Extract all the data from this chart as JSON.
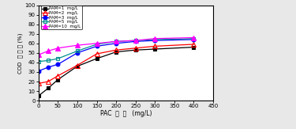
{
  "x": [
    0,
    25,
    50,
    100,
    150,
    200,
    250,
    300,
    400
  ],
  "series": [
    {
      "label": "PAM=1  mg/L",
      "color": "black",
      "marker": "s",
      "fillstyle": "full",
      "markersize": 3.5,
      "y": [
        5,
        13,
        22,
        36,
        44,
        51,
        53,
        54,
        56
      ]
    },
    {
      "label": "PAM=2  mg/L",
      "color": "red",
      "marker": "^",
      "fillstyle": "none",
      "markersize": 4,
      "y": [
        18,
        20,
        26,
        37,
        49,
        53,
        55,
        57,
        59
      ]
    },
    {
      "label": "PAM=3  mg/L",
      "color": "blue",
      "marker": "o",
      "fillstyle": "full",
      "markersize": 3.5,
      "y": [
        31,
        35,
        38,
        50,
        57,
        60,
        62,
        63,
        64
      ]
    },
    {
      "label": "PAM=5  mg/L",
      "color": "#009090",
      "marker": "s",
      "fillstyle": "none",
      "markersize": 3.5,
      "y": [
        41,
        42,
        44,
        52,
        59,
        62,
        63,
        64,
        65
      ]
    },
    {
      "label": "PAM=10  mg/L",
      "color": "magenta",
      "marker": "^",
      "fillstyle": "full",
      "markersize": 4,
      "y": [
        48,
        52,
        55,
        58,
        60,
        62,
        63,
        65,
        66
      ]
    }
  ],
  "xlabel": "PAC  用  量   (mg/L)",
  "ylabel": "COD  去 除 率 (%)",
  "xlim": [
    0,
    450
  ],
  "ylim": [
    0,
    100
  ],
  "xticks": [
    0,
    50,
    100,
    150,
    200,
    250,
    300,
    350,
    400,
    450
  ],
  "yticks": [
    0,
    10,
    20,
    30,
    40,
    50,
    60,
    70,
    80,
    90,
    100
  ],
  "background_color": "#e8e8e8",
  "plot_bg_color": "white"
}
